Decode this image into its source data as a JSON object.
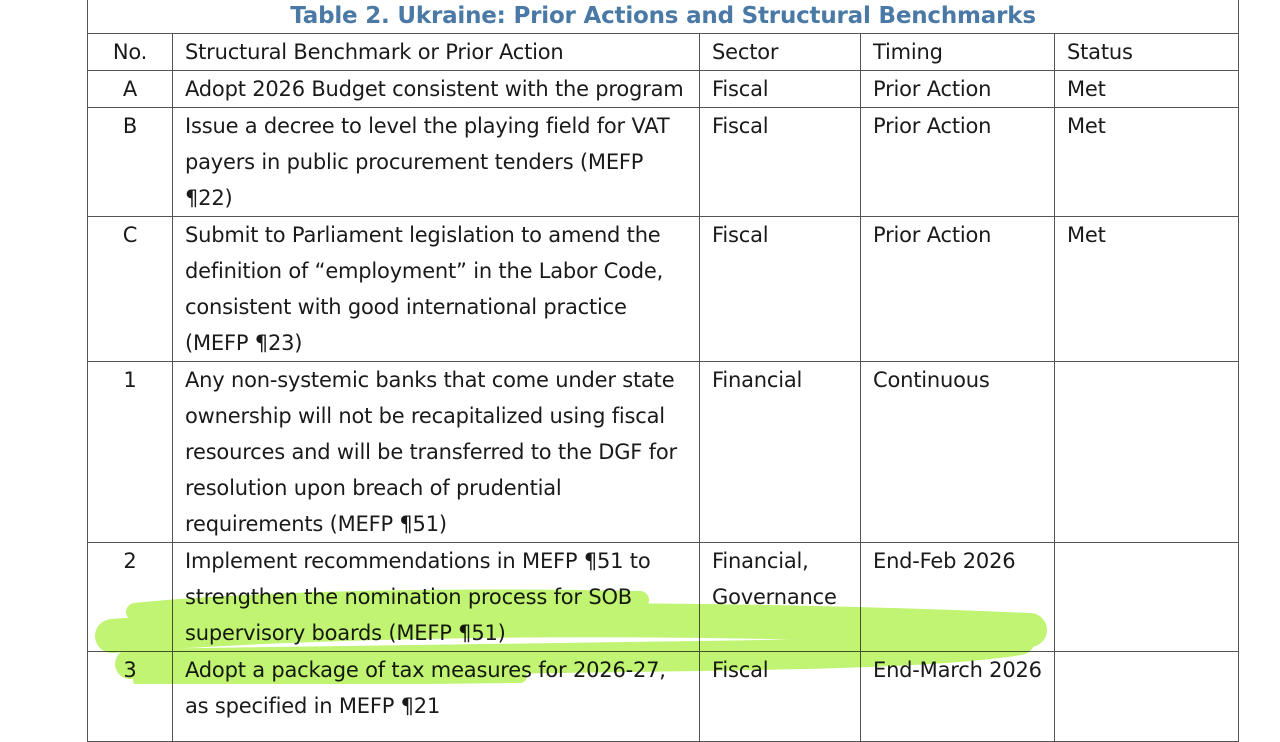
{
  "title": "Table 2. Ukraine: Prior Actions and Structural Benchmarks",
  "headers": {
    "no": "No.",
    "action": "Structural Benchmark or Prior Action",
    "sector": "Sector",
    "timing": "Timing",
    "status": "Status"
  },
  "rows": [
    {
      "no": "A",
      "action": "Adopt 2026 Budget consistent with the program",
      "sector": "Fiscal",
      "timing": "Prior Action",
      "status": "Met"
    },
    {
      "no": "B",
      "action": "Issue a decree to level the playing field for VAT payers in public procurement tenders (MEFP ¶22)",
      "sector": "Fiscal",
      "timing": "Prior Action",
      "status": "Met"
    },
    {
      "no": "C",
      "action": "Submit to Parliament legislation to amend the definition of “employment” in the Labor Code, consistent with good international practice (MEFP ¶23)",
      "sector": "Fiscal",
      "timing": "Prior Action",
      "status": "Met"
    },
    {
      "no": "1",
      "action": "Any non-systemic banks that come under state ownership will not be recapitalized using fiscal resources and will be transferred to the DGF for resolution upon breach of prudential requirements (MEFP ¶51)",
      "sector": "Financial",
      "timing": "Continuous",
      "status": ""
    },
    {
      "no": "2",
      "action": "Implement recommendations in MEFP ¶51 to strengthen the nomination process for SOB supervisory boards (MEFP ¶51)",
      "sector": "Financial, Governance",
      "timing": "End-Feb 2026",
      "status": ""
    },
    {
      "no": "3",
      "action": "Adopt a package of tax measures for 2026-27, as specified in MEFP ¶21",
      "sector": "Fiscal",
      "timing": "End-March 2026",
      "status": ""
    }
  ],
  "highlight_color": "#b5f25a"
}
